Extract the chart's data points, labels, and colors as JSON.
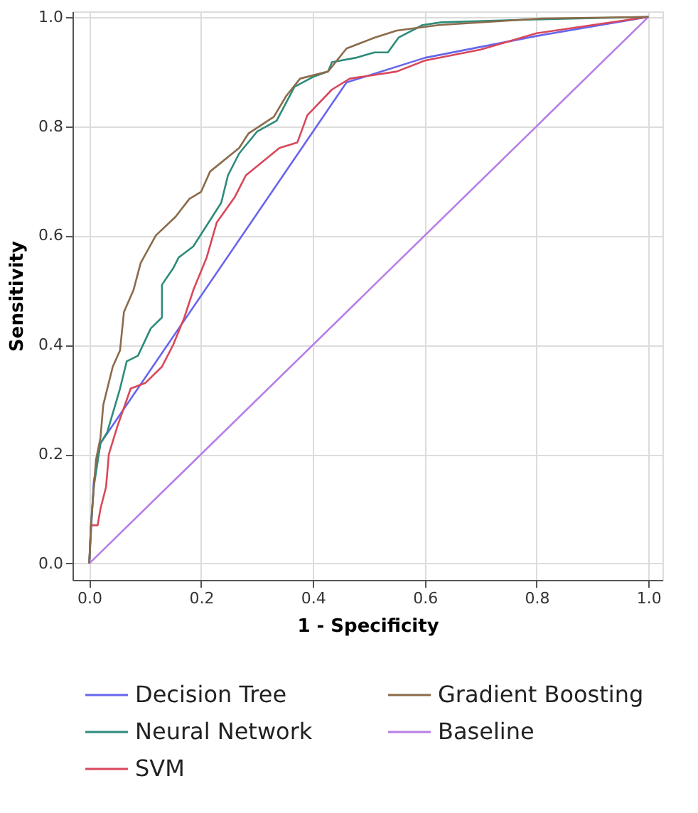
{
  "chart_data": {
    "type": "line",
    "xlabel": "1 - Specificity",
    "ylabel": "Sensitivity",
    "xlim": [
      -0.03,
      1.025
    ],
    "ylim": [
      -0.03,
      1.01
    ],
    "xticks": [
      {
        "value": 0,
        "label": "0.0"
      },
      0.2,
      0.4,
      0.6,
      0.8,
      {
        "value": 1,
        "label": "1.0"
      }
    ],
    "yticks": [
      {
        "value": 0,
        "label": "0.0"
      },
      0.2,
      0.4,
      0.6,
      0.8,
      {
        "value": 1,
        "label": "1.0"
      }
    ],
    "grid": true,
    "legend": "bottom",
    "marker": "none",
    "line_style": "solid",
    "series": [
      {
        "name": "Decision Tree",
        "color": "#6666ee",
        "x": [
          0,
          0.008,
          0.02,
          0.46,
          0.6,
          0.8,
          1
        ],
        "values": [
          0,
          0.15,
          0.22,
          0.88,
          0.925,
          0.965,
          1
        ]
      },
      {
        "name": "SVM",
        "color": "#d9475a",
        "x": [
          0,
          0.003,
          0.015,
          0.02,
          0.03,
          0.035,
          0.05,
          0.074,
          0.1,
          0.13,
          0.15,
          0.17,
          0.186,
          0.21,
          0.228,
          0.26,
          0.28,
          0.34,
          0.372,
          0.39,
          0.434,
          0.466,
          0.55,
          0.6,
          0.7,
          0.8,
          0.9,
          1
        ],
        "values": [
          0,
          0.07,
          0.07,
          0.1,
          0.14,
          0.2,
          0.25,
          0.32,
          0.33,
          0.36,
          0.4,
          0.45,
          0.5,
          0.56,
          0.624,
          0.67,
          0.71,
          0.76,
          0.77,
          0.82,
          0.867,
          0.887,
          0.9,
          0.92,
          0.94,
          0.97,
          0.985,
          1
        ]
      },
      {
        "name": "Baseline",
        "color": "#b77ee8",
        "x": [
          0,
          1
        ],
        "values": [
          0,
          1
        ]
      },
      {
        "name": "Neural Network",
        "color": "#2e8b7a",
        "x": [
          0,
          0.003,
          0.008,
          0.02,
          0.032,
          0.055,
          0.067,
          0.087,
          0.11,
          0.13,
          0.13,
          0.15,
          0.16,
          0.186,
          0.236,
          0.248,
          0.268,
          0.3,
          0.335,
          0.367,
          0.4,
          0.427,
          0.434,
          0.476,
          0.51,
          0.534,
          0.553,
          0.596,
          0.63,
          0.79,
          1
        ],
        "values": [
          0,
          0.07,
          0.14,
          0.22,
          0.24,
          0.32,
          0.37,
          0.38,
          0.43,
          0.45,
          0.51,
          0.54,
          0.56,
          0.58,
          0.66,
          0.71,
          0.75,
          0.79,
          0.81,
          0.872,
          0.89,
          0.9,
          0.917,
          0.925,
          0.935,
          0.935,
          0.962,
          0.985,
          0.99,
          0.995,
          1
        ]
      },
      {
        "name": "Gradient Boosting",
        "color": "#8b6b4a",
        "x": [
          0,
          0.003,
          0.012,
          0.02,
          0.025,
          0.042,
          0.055,
          0.062,
          0.079,
          0.092,
          0.119,
          0.154,
          0.179,
          0.2,
          0.216,
          0.268,
          0.285,
          0.33,
          0.352,
          0.377,
          0.427,
          0.46,
          0.51,
          0.55,
          0.625,
          0.81,
          1
        ],
        "values": [
          0,
          0.07,
          0.19,
          0.23,
          0.29,
          0.36,
          0.39,
          0.46,
          0.5,
          0.55,
          0.6,
          0.634,
          0.667,
          0.68,
          0.717,
          0.76,
          0.787,
          0.817,
          0.855,
          0.887,
          0.9,
          0.942,
          0.962,
          0.975,
          0.985,
          0.997,
          1
        ]
      }
    ]
  }
}
